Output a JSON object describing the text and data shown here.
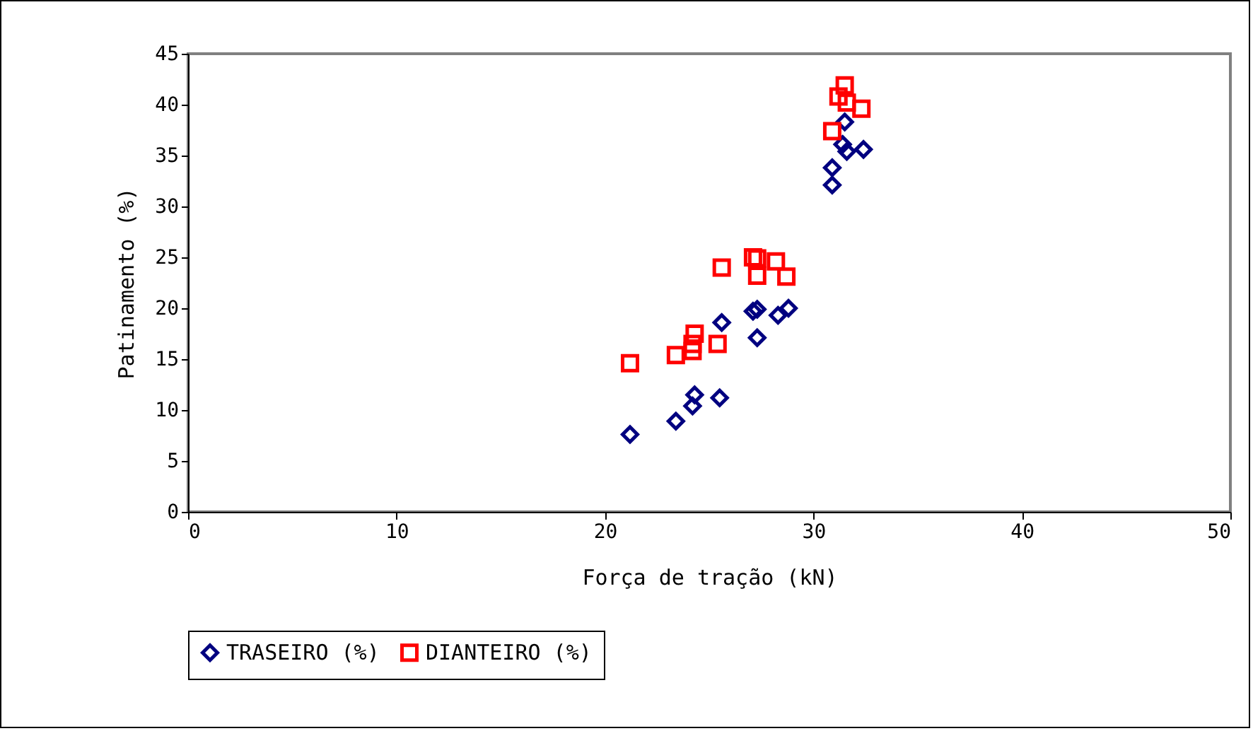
{
  "chart_data": {
    "type": "scatter",
    "xlabel": "Força de tração (kN)",
    "ylabel": "Patinamento (%)",
    "xlim": [
      0,
      50
    ],
    "xticks": [
      0,
      10,
      20,
      30,
      40,
      50
    ],
    "ylim": [
      0,
      45
    ],
    "yticks": [
      0,
      5,
      10,
      15,
      20,
      25,
      30,
      35,
      40,
      45
    ],
    "grid": false,
    "legend": "bottom",
    "series": [
      {
        "name": "TRASEIRO (%)",
        "color": "#000080",
        "marker": "diamond",
        "x": [
          21.2,
          23.4,
          24.2,
          24.3,
          25.5,
          25.6,
          27.1,
          27.3,
          27.3,
          28.3,
          28.8,
          30.9,
          30.9,
          31.4,
          31.5,
          31.6,
          32.4
        ],
        "values": [
          7.6,
          8.9,
          10.4,
          11.5,
          11.2,
          18.6,
          19.7,
          19.9,
          17.1,
          19.3,
          20.0,
          32.1,
          33.8,
          36.1,
          38.3,
          35.4,
          35.6
        ]
      },
      {
        "name": "DIANTEIRO (%)",
        "color": "#ff0000",
        "marker": "square",
        "x": [
          21.2,
          23.4,
          24.2,
          24.3,
          24.2,
          25.4,
          25.6,
          27.1,
          27.3,
          27.3,
          28.2,
          28.7,
          30.9,
          31.5,
          31.2,
          31.6,
          32.3
        ],
        "values": [
          14.6,
          15.4,
          16.5,
          17.5,
          15.8,
          16.5,
          24.0,
          25.0,
          24.9,
          23.2,
          24.6,
          23.1,
          37.4,
          41.9,
          40.8,
          40.2,
          39.6
        ]
      }
    ]
  }
}
